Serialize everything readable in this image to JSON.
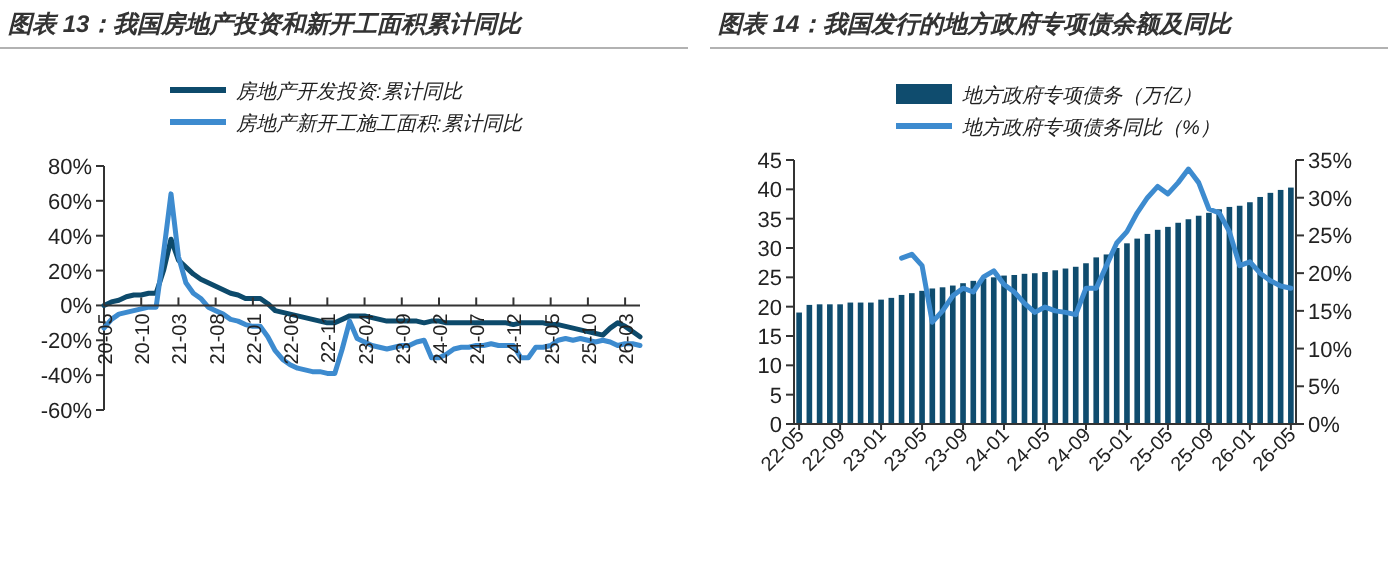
{
  "chart_data": [
    {
      "type": "line",
      "title": "图表 13：我国房地产投资和新开工面积累计同比",
      "legend": "top",
      "categories": [
        "20-05",
        null,
        null,
        null,
        null,
        "20-10",
        null,
        null,
        null,
        null,
        "21-03",
        null,
        null,
        null,
        null,
        "21-08",
        null,
        null,
        null,
        null,
        "22-01",
        null,
        null,
        null,
        null,
        "22-06",
        null,
        null,
        null,
        null,
        "22-11",
        null,
        null,
        null,
        null,
        "23-04",
        null,
        null,
        null,
        null,
        "23-09",
        null,
        null,
        null,
        null,
        "24-02",
        null,
        null,
        null,
        null,
        "24-07",
        null,
        null,
        null,
        null,
        "24-12",
        null,
        null,
        null,
        null,
        "25-05",
        null,
        null,
        null,
        null,
        "25-10",
        null,
        null,
        null,
        null,
        "26-03",
        null,
        null
      ],
      "ylim": [
        -60,
        80
      ],
      "yticks": [
        {
          "value": -60,
          "label": "-60%"
        },
        {
          "value": -40,
          "label": "-40%"
        },
        {
          "value": -20,
          "label": "-20%"
        },
        {
          "value": 0,
          "label": "0%"
        },
        {
          "value": 20,
          "label": "20%"
        },
        {
          "value": 40,
          "label": "40%"
        },
        {
          "value": 60,
          "label": "60%"
        },
        {
          "value": 80,
          "label": "80%"
        }
      ],
      "series": [
        {
          "name": "房地产开发投资:累计同比",
          "color": "#0d4a6b",
          "values": [
            0,
            2,
            3,
            5,
            6,
            6,
            7,
            7,
            20,
            38,
            26,
            22,
            18,
            15,
            13,
            11,
            9,
            7,
            6,
            4,
            4,
            4,
            1,
            -3,
            -4,
            -5,
            -6,
            -7,
            -8,
            -9,
            -10,
            -10,
            -8,
            -6,
            -6,
            -6,
            -7,
            -8,
            -9,
            -9,
            -9,
            -9,
            -9,
            -10,
            -9,
            -9,
            -10,
            -10,
            -10,
            -10,
            -10,
            -10,
            -10,
            -10,
            -10,
            -11,
            -10,
            -10,
            -10,
            -10,
            -11,
            -11,
            -12,
            -13,
            -14,
            -15,
            -16,
            -17,
            -13,
            -10,
            -12,
            -15,
            -18
          ]
        },
        {
          "name": "房地产新开工施工面积:累计同比",
          "color": "#3d8bcf",
          "values": [
            -13,
            -8,
            -5,
            -4,
            -3,
            -2,
            -1,
            -1,
            30,
            64,
            28,
            13,
            7,
            4,
            -1,
            -3,
            -5,
            -8,
            -9,
            -11,
            -12,
            -12,
            -18,
            -26,
            -31,
            -34,
            -36,
            -37,
            -38,
            -38,
            -39,
            -39,
            -25,
            -9,
            -19,
            -21,
            -23,
            -24,
            -25,
            -24,
            -23,
            -23,
            -21,
            -20,
            -30,
            -30,
            -28,
            -25,
            -24,
            -24,
            -23,
            -23,
            -22,
            -23,
            -23,
            -23,
            -30,
            -30,
            -24,
            -24,
            -23,
            -20,
            -19,
            -20,
            -19,
            -20,
            -21,
            -20,
            -21,
            -23,
            -22,
            -22,
            -23
          ]
        }
      ]
    },
    {
      "type": "bar",
      "title": "图表 14：我国发行的地方政府专项债余额及同比",
      "legend": "top",
      "categories": [
        "22-05",
        null,
        null,
        null,
        "22-09",
        null,
        null,
        null,
        "23-01",
        null,
        null,
        null,
        "23-05",
        null,
        null,
        null,
        "23-09",
        null,
        null,
        null,
        "24-01",
        null,
        null,
        null,
        "24-05",
        null,
        null,
        null,
        "24-09",
        null,
        null,
        null,
        "25-01",
        null,
        null,
        null,
        "25-05",
        null,
        null,
        null,
        "25-09",
        null,
        null,
        null,
        "26-01",
        null,
        null,
        null,
        "26-05"
      ],
      "ylim": [
        0,
        45
      ],
      "yticks": [
        0,
        5,
        10,
        15,
        20,
        25,
        30,
        35,
        40,
        45
      ],
      "y2lim": [
        0,
        35
      ],
      "y2ticks": [
        {
          "value": 0,
          "label": "0%"
        },
        {
          "value": 5,
          "label": "5%"
        },
        {
          "value": 10,
          "label": "10%"
        },
        {
          "value": 15,
          "label": "15%"
        },
        {
          "value": 20,
          "label": "20%"
        },
        {
          "value": 25,
          "label": "25%"
        },
        {
          "value": 30,
          "label": "30%"
        },
        {
          "value": 35,
          "label": "35%"
        }
      ],
      "series": [
        {
          "name": "地方政府专项债务（万亿）",
          "color": "#0f4c6e",
          "values": [
            19.0,
            20.3,
            20.4,
            20.4,
            20.4,
            20.7,
            20.7,
            20.7,
            21.2,
            21.5,
            22.0,
            22.3,
            22.7,
            23.1,
            23.3,
            23.6,
            24.0,
            24.4,
            24.8,
            25.0,
            25.3,
            25.4,
            25.6,
            25.7,
            25.9,
            26.2,
            26.5,
            26.8,
            27.4,
            28.4,
            28.9,
            30.0,
            30.8,
            31.6,
            32.4,
            33.1,
            33.6,
            34.3,
            34.9,
            35.5,
            36.0,
            36.6,
            37.0,
            37.2,
            37.8,
            38.7,
            39.4,
            39.9,
            40.3
          ]
        },
        {
          "name": "地方政府专项债务同比（%）",
          "type": "line",
          "axis": "y2",
          "color": "#3d8bcf",
          "values": [
            null,
            null,
            null,
            null,
            null,
            null,
            null,
            null,
            null,
            null,
            22,
            22.5,
            21,
            13.5,
            15,
            17,
            18,
            17.5,
            19.5,
            20.3,
            18.5,
            17.5,
            16,
            14.8,
            15.5,
            15,
            14.8,
            14.5,
            18,
            18,
            21,
            24,
            25.5,
            28,
            30,
            31.5,
            30.5,
            32,
            33.8,
            32,
            28.5,
            28,
            25.5,
            21,
            21.5,
            20,
            19,
            18.3,
            18
          ]
        }
      ]
    }
  ]
}
